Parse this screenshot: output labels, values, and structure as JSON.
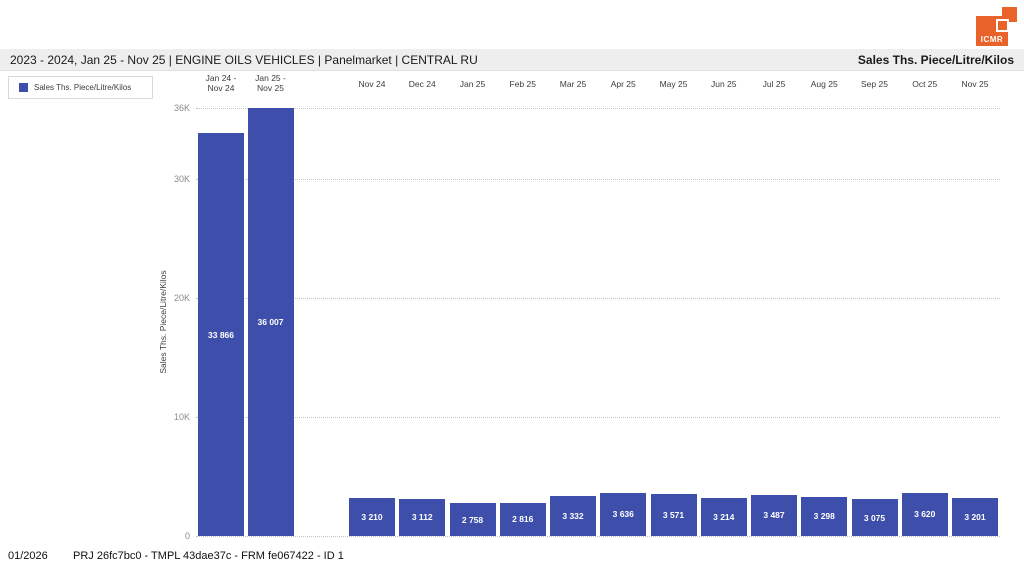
{
  "logo": {
    "text": "ICMR",
    "color": "#e8622a"
  },
  "header": {
    "title": "2023 - 2024, Jan 25 - Nov 25 | ENGINE OILS VEHICLES | Panelmarket | CENTRAL RU",
    "measure": "Sales Ths. Piece/Litre/Kilos"
  },
  "legend": {
    "items": [
      {
        "label": "Sales Ths. Piece/Litre/Kilos",
        "color": "#3e4fab"
      }
    ]
  },
  "chart_data": {
    "type": "bar",
    "title": "2023 - 2024, Jan 25 - Nov 25 | ENGINE OILS VEHICLES | Panelmarket | CENTRAL RU",
    "xlabel": "",
    "ylabel": "Sales Ths. Piece/Litre/Kilos",
    "ylim": [
      0,
      36000
    ],
    "y_ticks": [
      {
        "value": 0,
        "label": "0"
      },
      {
        "value": 10000,
        "label": "10K"
      },
      {
        "value": 20000,
        "label": "20K"
      },
      {
        "value": 30000,
        "label": "30K"
      },
      {
        "value": 36000,
        "label": "36K"
      }
    ],
    "grid": "horizontal-dotted",
    "legend_position": "top-left",
    "bar_color": "#3e4fab",
    "categories": [
      "Jan 24 - Nov 24",
      "Jan 25 - Nov 25",
      "Nov 24",
      "Dec 24",
      "Jan 25",
      "Feb 25",
      "Mar 25",
      "Apr 25",
      "May 25",
      "Jun 25",
      "Jul 25",
      "Aug 25",
      "Sep 25",
      "Oct 25",
      "Nov 25"
    ],
    "category_label_lines": [
      [
        "Jan 24 -",
        "Nov 24"
      ],
      [
        "Jan 25 -",
        "Nov 25"
      ],
      [
        "Nov 24"
      ],
      [
        "Dec 24"
      ],
      [
        "Jan 25"
      ],
      [
        "Feb 25"
      ],
      [
        "Mar 25"
      ],
      [
        "Apr 25"
      ],
      [
        "May 25"
      ],
      [
        "Jun 25"
      ],
      [
        "Jul 25"
      ],
      [
        "Aug 25"
      ],
      [
        "Sep 25"
      ],
      [
        "Oct 25"
      ],
      [
        "Nov 25"
      ]
    ],
    "values": [
      33866,
      36007,
      3210,
      3112,
      2758,
      2816,
      3332,
      3636,
      3571,
      3214,
      3487,
      3298,
      3075,
      3620,
      3201
    ],
    "value_labels": [
      "33 866",
      "36 007",
      "3 210",
      "3 112",
      "2 758",
      "2 816",
      "3 332",
      "3 636",
      "3 571",
      "3 214",
      "3 487",
      "3 298",
      "3 075",
      "3 620",
      "3 201"
    ]
  },
  "footer": {
    "date": "01/2026",
    "reference": "PRJ 26fc7bc0 - TMPL 43dae37c - FRM fe067422 - ID 1"
  }
}
